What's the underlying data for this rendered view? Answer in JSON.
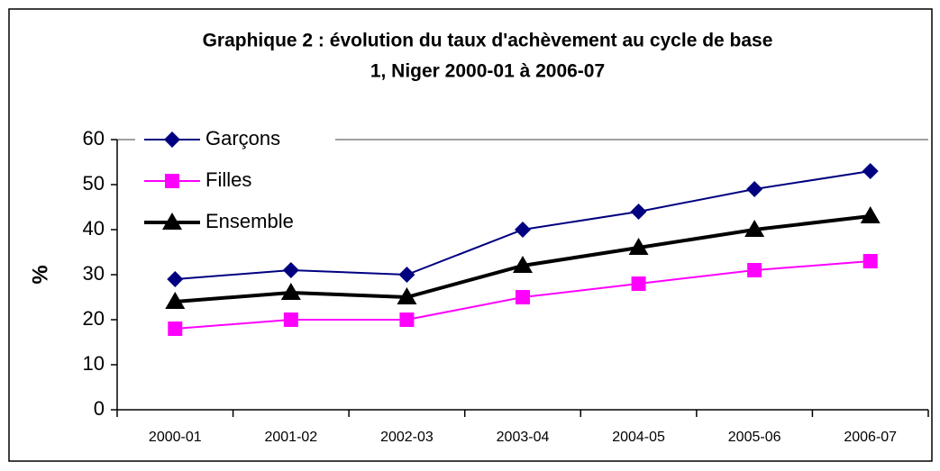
{
  "chart_data": {
    "type": "line",
    "title": [
      "Graphique 2 : évolution du taux d'achèvement au cycle de base",
      "1, Niger 2000-01 à 2006-07"
    ],
    "ylabel": "%",
    "categories": [
      "2000-01",
      "2001-02",
      "2002-03",
      "2003-04",
      "2004-05",
      "2005-06",
      "2006-07"
    ],
    "series": [
      {
        "name": "Garçons",
        "color": "#000080",
        "marker": "diamond",
        "values": [
          29,
          31,
          30,
          40,
          44,
          49,
          53
        ]
      },
      {
        "name": "Filles",
        "color": "#ff00ff",
        "marker": "square",
        "values": [
          18,
          20,
          20,
          25,
          28,
          31,
          33
        ]
      },
      {
        "name": "Ensemble",
        "color": "#000000",
        "marker": "triangle",
        "values": [
          24,
          26,
          25,
          32,
          36,
          40,
          43
        ]
      }
    ],
    "ylim": [
      0,
      60
    ],
    "yticks": [
      0,
      10,
      20,
      30,
      40,
      50,
      60
    ],
    "legend": "top-left"
  }
}
